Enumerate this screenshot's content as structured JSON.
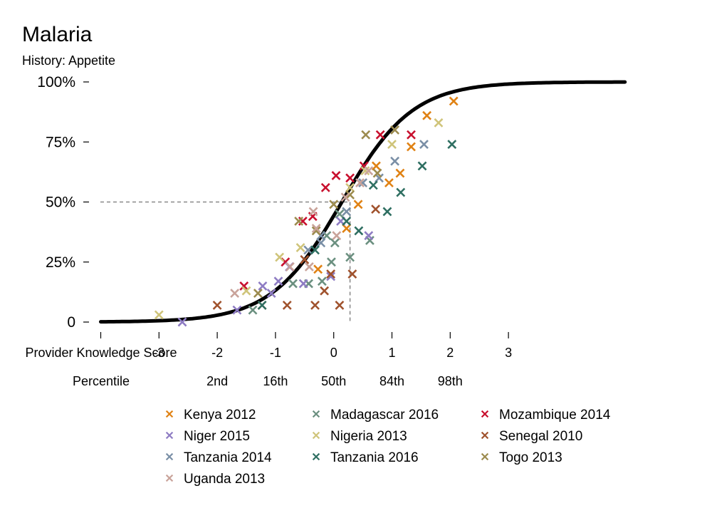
{
  "chart_data": {
    "type": "scatter",
    "title": "Malaria",
    "subtitle": "History: Appetite",
    "xlabel": "Provider Knowledge Score",
    "x2label": "Percentile",
    "xlim": [
      -4,
      5
    ],
    "ylim": [
      0,
      1
    ],
    "x_ticks": [
      -4,
      -3,
      -2,
      -1,
      0,
      1,
      2,
      3
    ],
    "x_tick_labels": [
      "",
      "-3",
      "-2",
      "-1",
      "0",
      "1",
      "2",
      "3"
    ],
    "y_ticks": [
      0,
      0.25,
      0.5,
      0.75,
      1
    ],
    "y_tick_labels": [
      "0",
      "25%",
      "50%",
      "75%",
      "100%"
    ],
    "percentile_ticks": [
      {
        "x": -2,
        "label": "2nd"
      },
      {
        "x": -1,
        "label": "16th"
      },
      {
        "x": 0,
        "label": "50th"
      },
      {
        "x": 1,
        "label": "84th"
      },
      {
        "x": 2,
        "label": "98th"
      }
    ],
    "reference": {
      "x": 0.28,
      "y": 0.5
    },
    "curve": {
      "x0": 0.14,
      "k": 1.65
    },
    "legend_position": "bottom",
    "series": [
      {
        "name": "Kenya 2012",
        "color": "#E08214",
        "points": [
          [
            2.06,
            0.92
          ],
          [
            1.6,
            0.86
          ],
          [
            1.33,
            0.73
          ],
          [
            1.14,
            0.62
          ],
          [
            0.95,
            0.58
          ],
          [
            0.73,
            0.65
          ],
          [
            0.42,
            0.49
          ],
          [
            0.22,
            0.39
          ],
          [
            -0.27,
            0.22
          ]
        ]
      },
      {
        "name": "Madagascar 2016",
        "color": "#6B9080",
        "points": [
          [
            0.62,
            0.34
          ],
          [
            0.28,
            0.27
          ],
          [
            0.02,
            0.33
          ],
          [
            -0.04,
            0.25
          ],
          [
            -0.2,
            0.17
          ],
          [
            -0.43,
            0.16
          ],
          [
            -0.7,
            0.16
          ],
          [
            -1.39,
            0.05
          ],
          [
            0.1,
            0.45
          ],
          [
            -0.12,
            0.36
          ]
        ]
      },
      {
        "name": "Mozambique 2014",
        "color": "#C8102E",
        "points": [
          [
            1.33,
            0.78
          ],
          [
            0.8,
            0.78
          ],
          [
            0.52,
            0.65
          ],
          [
            0.28,
            0.6
          ],
          [
            0.04,
            0.61
          ],
          [
            -0.14,
            0.56
          ],
          [
            -0.36,
            0.44
          ],
          [
            -0.53,
            0.42
          ],
          [
            -0.83,
            0.25
          ],
          [
            -1.54,
            0.15
          ]
        ]
      },
      {
        "name": "Niger 2015",
        "color": "#8E7CC3",
        "points": [
          [
            -2.6,
            0.0
          ],
          [
            -1.66,
            0.05
          ],
          [
            -1.22,
            0.15
          ],
          [
            -1.07,
            0.12
          ],
          [
            -0.95,
            0.17
          ],
          [
            -0.76,
            0.23
          ],
          [
            -0.52,
            0.16
          ],
          [
            -0.05,
            0.19
          ],
          [
            0.12,
            0.42
          ],
          [
            0.6,
            0.36
          ]
        ]
      },
      {
        "name": "Nigeria 2013",
        "color": "#CFC47A",
        "points": [
          [
            -3.0,
            0.03
          ],
          [
            -1.5,
            0.13
          ],
          [
            -0.93,
            0.27
          ],
          [
            -0.57,
            0.31
          ],
          [
            0.28,
            0.56
          ],
          [
            0.54,
            0.63
          ],
          [
            1.0,
            0.74
          ],
          [
            1.8,
            0.83
          ]
        ]
      },
      {
        "name": "Senegal 2010",
        "color": "#A0522D",
        "points": [
          [
            -2.0,
            0.07
          ],
          [
            -1.23,
            0.07
          ],
          [
            -0.8,
            0.07
          ],
          [
            -0.32,
            0.07
          ],
          [
            0.1,
            0.07
          ],
          [
            -0.16,
            0.13
          ],
          [
            -0.05,
            0.2
          ],
          [
            0.32,
            0.2
          ],
          [
            0.72,
            0.47
          ],
          [
            -0.5,
            0.26
          ]
        ]
      },
      {
        "name": "Tanzania 2014",
        "color": "#7A8FA6",
        "points": [
          [
            1.55,
            0.74
          ],
          [
            1.05,
            0.67
          ],
          [
            0.78,
            0.6
          ],
          [
            0.5,
            0.58
          ],
          [
            0.22,
            0.46
          ],
          [
            -0.22,
            0.33
          ],
          [
            -0.44,
            0.3
          ],
          [
            -0.22,
            0.36
          ]
        ]
      },
      {
        "name": "Tanzania 2016",
        "color": "#2F6F62",
        "points": [
          [
            2.03,
            0.74
          ],
          [
            1.52,
            0.65
          ],
          [
            1.15,
            0.54
          ],
          [
            0.92,
            0.46
          ],
          [
            0.68,
            0.57
          ],
          [
            0.43,
            0.38
          ],
          [
            0.22,
            0.42
          ],
          [
            -0.32,
            0.3
          ],
          [
            -1.23,
            0.07
          ]
        ]
      },
      {
        "name": "Togo 2013",
        "color": "#9C8B4E",
        "points": [
          [
            1.05,
            0.8
          ],
          [
            0.55,
            0.78
          ],
          [
            0.75,
            0.62
          ],
          [
            0.28,
            0.53
          ],
          [
            0.0,
            0.49
          ],
          [
            -0.6,
            0.42
          ],
          [
            -0.3,
            0.38
          ],
          [
            -1.3,
            0.12
          ]
        ]
      },
      {
        "name": "Uganda 2013",
        "color": "#C9A39A",
        "points": [
          [
            -1.7,
            0.12
          ],
          [
            -0.75,
            0.23
          ],
          [
            -0.42,
            0.23
          ],
          [
            -0.3,
            0.39
          ],
          [
            0.05,
            0.36
          ],
          [
            0.45,
            0.58
          ],
          [
            0.6,
            0.63
          ],
          [
            -0.35,
            0.46
          ],
          [
            0.2,
            0.52
          ]
        ]
      }
    ]
  }
}
